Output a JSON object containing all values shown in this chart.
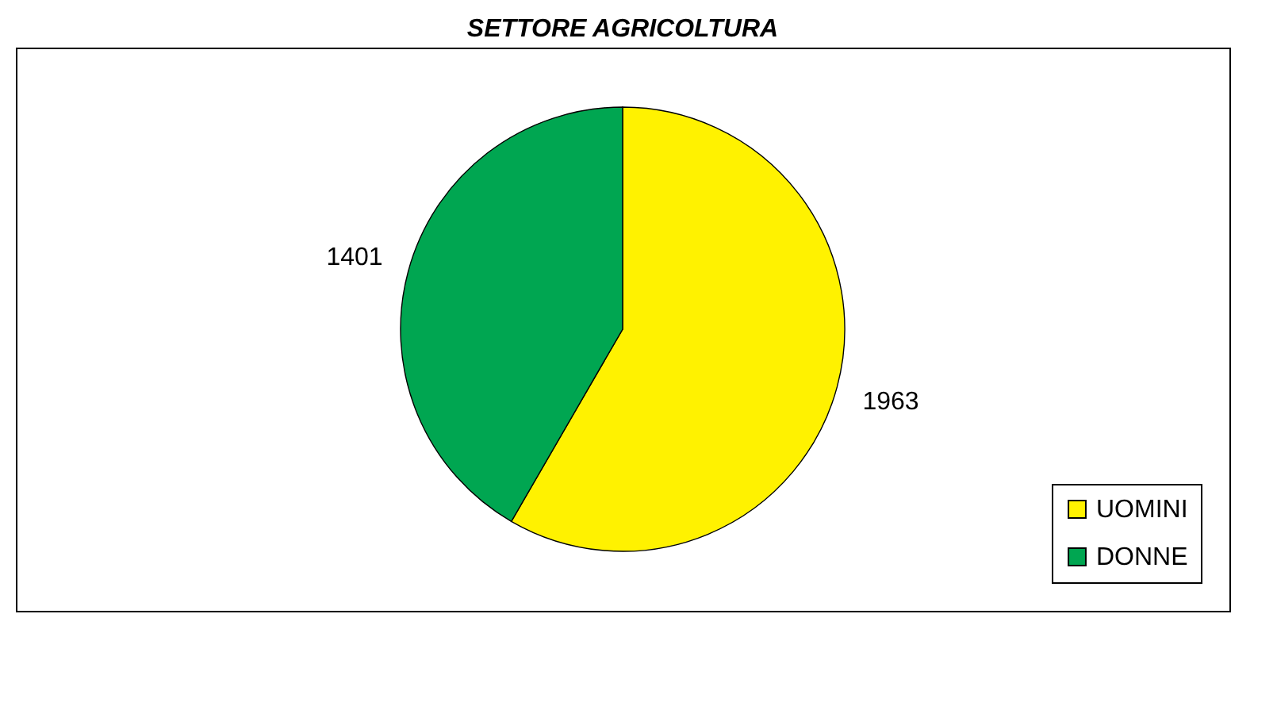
{
  "chart_data": {
    "type": "pie",
    "title": "SETTORE  AGRICOLTURA",
    "categories": [
      "UOMINI",
      "DONNE"
    ],
    "values": [
      1963,
      1401
    ],
    "colors": [
      "#fff200",
      "#00a651"
    ],
    "data_labels": true,
    "legend": "bottom right"
  }
}
